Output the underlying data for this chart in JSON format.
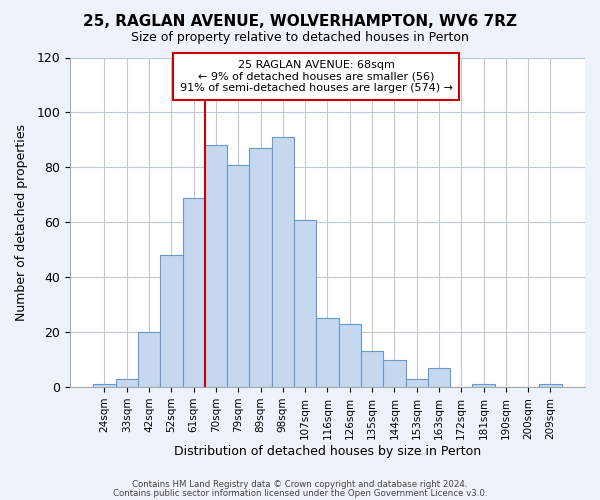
{
  "title": "25, RAGLAN AVENUE, WOLVERHAMPTON, WV6 7RZ",
  "subtitle": "Size of property relative to detached houses in Perton",
  "xlabel": "Distribution of detached houses by size in Perton",
  "ylabel": "Number of detached properties",
  "bar_color": "#c5d8f0",
  "bar_edge_color": "#6699cc",
  "categories": [
    "24sqm",
    "33sqm",
    "42sqm",
    "52sqm",
    "61sqm",
    "70sqm",
    "79sqm",
    "89sqm",
    "98sqm",
    "107sqm",
    "116sqm",
    "126sqm",
    "135sqm",
    "144sqm",
    "153sqm",
    "163sqm",
    "172sqm",
    "181sqm",
    "190sqm",
    "200sqm",
    "209sqm"
  ],
  "values": [
    1,
    3,
    20,
    48,
    69,
    88,
    81,
    87,
    91,
    61,
    25,
    23,
    13,
    10,
    3,
    7,
    0,
    1,
    0,
    0,
    1
  ],
  "ylim": [
    0,
    120
  ],
  "yticks": [
    0,
    20,
    40,
    60,
    80,
    100,
    120
  ],
  "vline_color": "#cc0000",
  "vline_pos": 4.5,
  "annotation_title": "25 RAGLAN AVENUE: 68sqm",
  "annotation_line1": "← 9% of detached houses are smaller (56)",
  "annotation_line2": "91% of semi-detached houses are larger (574) →",
  "annotation_box_color": "white",
  "annotation_box_edge_color": "#cc0000",
  "footer_line1": "Contains HM Land Registry data © Crown copyright and database right 2024.",
  "footer_line2": "Contains public sector information licensed under the Open Government Licence v3.0.",
  "background_color": "#eef2fa",
  "plot_bg_color": "white",
  "grid_color": "#c0c8d8"
}
